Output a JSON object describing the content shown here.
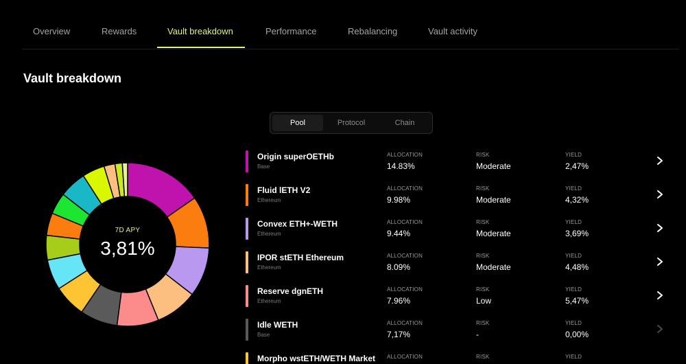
{
  "tabs": [
    "Overview",
    "Rewards",
    "Vault breakdown",
    "Performance",
    "Rebalancing",
    "Vault activity"
  ],
  "active_tab": "Vault breakdown",
  "section_title": "Vault breakdown",
  "segmented": {
    "options": [
      "Pool",
      "Protocol",
      "Chain"
    ],
    "selected": "Pool"
  },
  "apy": {
    "label": "7D APY",
    "value": "3,81%"
  },
  "column_labels": {
    "allocation": "ALLOCATION",
    "risk": "RISK",
    "yield": "YIELD"
  },
  "colors": {
    "accent": "#d9f970",
    "donut_segments": [
      "#c013ae",
      "#fb7d10",
      "#b899ef",
      "#fcbf80",
      "#fc8c8c",
      "#5a5a5a",
      "#fdc433",
      "#66e5f7",
      "#a5cd1a",
      "#fb7d10",
      "#1de633",
      "#1ab8c6",
      "#d9f700",
      "#fcbf80",
      "#c9ea1c",
      "#e9ee9a"
    ]
  },
  "donut_percentages": [
    14.83,
    9.98,
    9.44,
    8.09,
    7.96,
    7.17,
    6.2,
    5.8,
    4.7,
    4.3,
    4.1,
    5.2,
    4.3,
    2.1,
    1.4,
    1.0
  ],
  "rows": [
    {
      "name": "Origin superOETHb",
      "chain": "Base",
      "allocation": "14.83%",
      "risk": "Moderate",
      "yield": "2,47%",
      "color": "#c013ae",
      "enabled": true
    },
    {
      "name": "Fluid lETH V2",
      "chain": "Ethereum",
      "allocation": "9.98%",
      "risk": "Moderate",
      "yield": "4,32%",
      "color": "#fb7d10",
      "enabled": true
    },
    {
      "name": "Convex ETH+-WETH",
      "chain": "Ethereum",
      "allocation": "9.44%",
      "risk": "Moderate",
      "yield": "3,69%",
      "color": "#b899ef",
      "enabled": true
    },
    {
      "name": "IPOR stETH Ethereum",
      "chain": "Ethereum",
      "allocation": "8.09%",
      "risk": "Moderate",
      "yield": "4,48%",
      "color": "#fcbf80",
      "enabled": true
    },
    {
      "name": "Reserve dgnETH",
      "chain": "Ethereum",
      "allocation": "7.96%",
      "risk": "Low",
      "yield": "5,47%",
      "color": "#fc8c8c",
      "enabled": true
    },
    {
      "name": "Idle WETH",
      "chain": "Base",
      "allocation": "7,17%",
      "risk": "-",
      "yield": "0,00%",
      "color": "#5a5a5a",
      "enabled": false
    },
    {
      "name": "Morpho wstETH/WETH Market",
      "chain": "",
      "allocation": "",
      "risk": "",
      "yield": "",
      "color": "#fdc433",
      "enabled": true
    }
  ]
}
